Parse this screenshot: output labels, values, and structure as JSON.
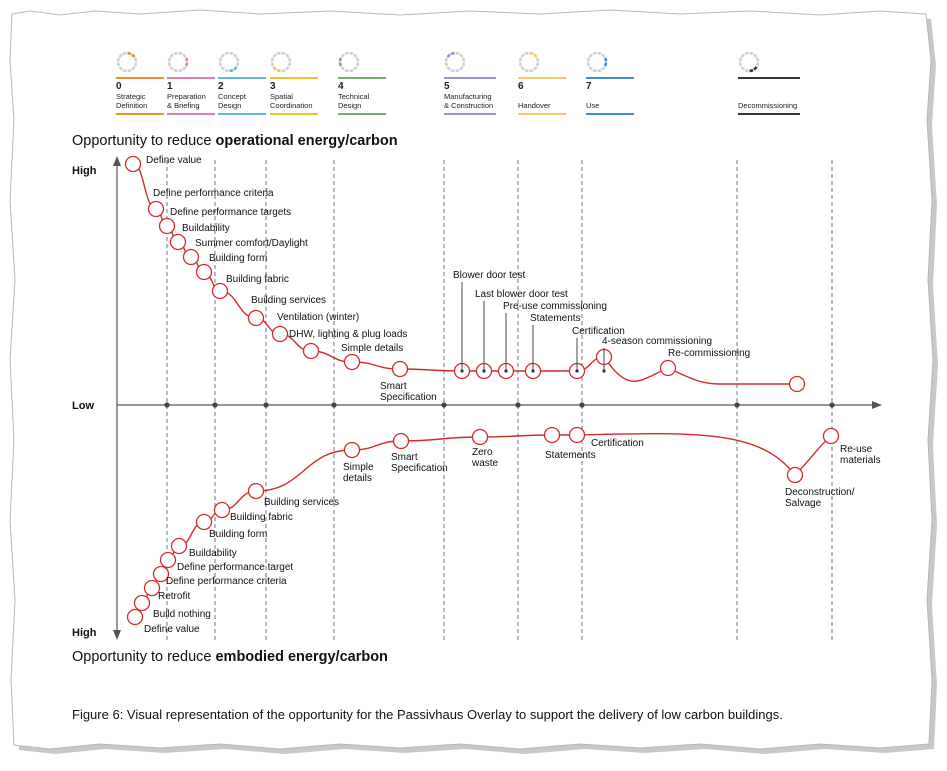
{
  "stages": [
    {
      "num": "0",
      "line1": "Strategic",
      "line2": "Definition",
      "color": "#e8902a"
    },
    {
      "num": "1",
      "line1": "Preparation",
      "line2": "& Briefing",
      "color": "#e07bb0"
    },
    {
      "num": "2",
      "line1": "Concept",
      "line2": "Design",
      "color": "#5fb8d8"
    },
    {
      "num": "3",
      "line1": "Spatial",
      "line2": "Coordination",
      "color": "#e9c731"
    },
    {
      "num": "4",
      "line1": "Technical",
      "line2": "Design",
      "color": "#6fb06a"
    },
    {
      "num": "5",
      "line1": "Manufacturing",
      "line2": "& Construction",
      "color": "#9b8fcf"
    },
    {
      "num": "6",
      "line1": "",
      "line2": "Handover",
      "color": "#f0c96a"
    },
    {
      "num": "7",
      "line1": "",
      "line2": "Use",
      "color": "#3f8fd0"
    },
    {
      "num": "",
      "line1": "",
      "line2": "Decommissioning",
      "color": "#333333"
    }
  ],
  "headings": {
    "operational_prefix": "Opportunity to reduce ",
    "operational_bold": "operational energy/carbon",
    "embodied_prefix": "Opportunity to reduce ",
    "embodied_bold": "embodied energy/carbon"
  },
  "axis": {
    "high_top": "High",
    "low": "Low",
    "high_bottom": "High"
  },
  "operational_points": [
    {
      "label": "Define value"
    },
    {
      "label": "Define performance criteria"
    },
    {
      "label": "Define performance targets"
    },
    {
      "label": "Buildability"
    },
    {
      "label": "Summer comfort/Daylight"
    },
    {
      "label": "Building form"
    },
    {
      "label": "Building fabric"
    },
    {
      "label": "Building services"
    },
    {
      "label": "Ventilation (winter)"
    },
    {
      "label": "DHW, lighting & plug loads"
    },
    {
      "label": "Simple details"
    },
    {
      "label": "Smart Specification"
    },
    {
      "label": "Blower door test"
    },
    {
      "label": "Last blower door test"
    },
    {
      "label": "Pre-use commissioning"
    },
    {
      "label": "Statements"
    },
    {
      "label": "Certification"
    },
    {
      "label": "4-season commissioning"
    },
    {
      "label": "Re-commissioning"
    },
    {
      "label": ""
    }
  ],
  "embodied_points": [
    {
      "label": "Define value"
    },
    {
      "label": "Build nothing"
    },
    {
      "label": "Retrofit"
    },
    {
      "label": "Define performance criteria"
    },
    {
      "label": "Define performance target"
    },
    {
      "label": "Buildability"
    },
    {
      "label": "Building form"
    },
    {
      "label": "Building fabric"
    },
    {
      "label": "Building services"
    },
    {
      "label": "Simple details"
    },
    {
      "label": "Smart Specification"
    },
    {
      "label": "Zero waste"
    },
    {
      "label": "Statements"
    },
    {
      "label": "Certification"
    },
    {
      "label": "Deconstruction/ Salvage"
    },
    {
      "label": "Re-use materials"
    }
  ],
  "caption": "Figure 6: Visual representation of the opportunity for the Passivhaus Overlay to support the delivery of low carbon buildings.",
  "colors": {
    "curve": "#d42a2a",
    "axis": "#555555",
    "divider": "#666666"
  }
}
